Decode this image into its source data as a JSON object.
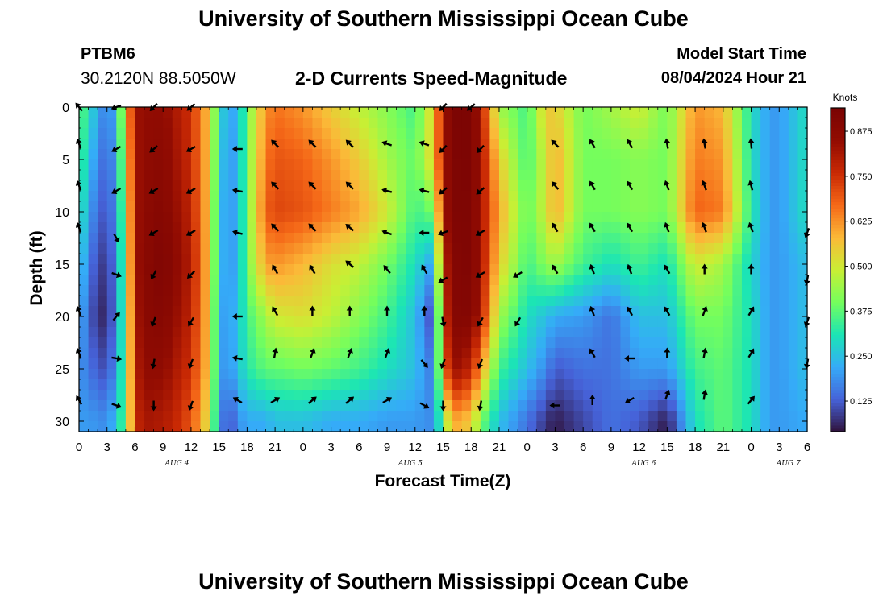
{
  "header": {
    "title": "University of Southern Mississippi Ocean Cube",
    "station": "PTBM6",
    "coords": "30.2120N  88.5050W",
    "subtitle": "2-D Currents Speed-Magnitude",
    "model_start_label": "Model Start Time",
    "model_start_value": "08/04/2024 Hour 21"
  },
  "footer": {
    "title": "University of Southern Mississippi Ocean Cube"
  },
  "chart_data": {
    "type": "heatmap",
    "title": "2-D Currents Speed-Magnitude",
    "xlabel": "Forecast Time(Z)",
    "ylabel": "Depth (ft)",
    "x_range_hours": [
      0,
      78
    ],
    "x_hour_offset": 0,
    "x_tick_step_hours": 3,
    "ylim": [
      0,
      31
    ],
    "y_ticks": [
      0,
      5,
      10,
      15,
      20,
      25,
      30
    ],
    "date_labels": [
      {
        "label": "AUG 4",
        "hour": 10.5
      },
      {
        "label": "AUG 5",
        "hour": 35.5
      },
      {
        "label": "AUG 6",
        "hour": 60.5
      },
      {
        "label": "AUG 7",
        "hour": 76
      }
    ],
    "colorbar": {
      "title": "Knots",
      "min": 0.04,
      "max": 0.94,
      "ticks": [
        0.125,
        0.25,
        0.375,
        0.5,
        0.625,
        0.75,
        0.875
      ],
      "tick_labels": [
        "0.125",
        "0.250",
        "0.375",
        "0.500",
        "0.625",
        "0.750",
        "0.875"
      ]
    },
    "grid_hours": [
      0,
      1,
      3,
      4,
      5,
      6,
      7,
      9,
      10,
      12,
      14,
      15,
      16,
      17,
      18,
      20,
      21,
      24,
      27,
      30,
      33,
      36,
      38,
      39,
      40,
      42,
      43,
      45,
      48,
      50,
      51,
      54,
      57,
      60,
      63,
      66,
      69,
      72,
      74,
      75,
      78
    ],
    "grid_depths_ft": [
      0,
      5,
      10,
      15,
      20,
      25,
      30
    ],
    "speed_knots": [
      [
        0.4,
        0.3,
        0.15,
        0.25,
        0.55,
        0.83,
        0.85,
        0.86,
        0.82,
        0.75,
        0.55,
        0.3,
        0.22,
        0.22,
        0.4,
        0.62,
        0.66,
        0.62,
        0.55,
        0.48,
        0.42,
        0.35,
        0.55,
        0.82,
        0.93,
        0.93,
        0.8,
        0.45,
        0.35,
        0.55,
        0.55,
        0.4,
        0.45,
        0.5,
        0.4,
        0.62,
        0.58,
        0.3,
        0.2,
        0.2,
        0.3
      ],
      [
        0.38,
        0.25,
        0.12,
        0.22,
        0.5,
        0.82,
        0.86,
        0.88,
        0.84,
        0.76,
        0.55,
        0.28,
        0.2,
        0.22,
        0.4,
        0.65,
        0.7,
        0.68,
        0.62,
        0.55,
        0.45,
        0.38,
        0.55,
        0.82,
        0.92,
        0.93,
        0.82,
        0.55,
        0.35,
        0.5,
        0.6,
        0.4,
        0.4,
        0.42,
        0.4,
        0.65,
        0.62,
        0.3,
        0.2,
        0.2,
        0.3
      ],
      [
        0.35,
        0.2,
        0.1,
        0.2,
        0.45,
        0.82,
        0.87,
        0.9,
        0.86,
        0.78,
        0.55,
        0.25,
        0.2,
        0.22,
        0.4,
        0.68,
        0.72,
        0.7,
        0.65,
        0.6,
        0.5,
        0.35,
        0.4,
        0.8,
        0.92,
        0.92,
        0.82,
        0.6,
        0.38,
        0.5,
        0.6,
        0.4,
        0.4,
        0.42,
        0.4,
        0.68,
        0.65,
        0.32,
        0.2,
        0.2,
        0.3
      ],
      [
        0.3,
        0.15,
        0.07,
        0.18,
        0.42,
        0.82,
        0.88,
        0.92,
        0.88,
        0.8,
        0.55,
        0.25,
        0.2,
        0.22,
        0.4,
        0.6,
        0.62,
        0.58,
        0.52,
        0.48,
        0.4,
        0.3,
        0.2,
        0.75,
        0.9,
        0.92,
        0.82,
        0.55,
        0.35,
        0.42,
        0.45,
        0.35,
        0.3,
        0.35,
        0.3,
        0.5,
        0.45,
        0.28,
        0.2,
        0.2,
        0.25
      ],
      [
        0.25,
        0.12,
        0.05,
        0.18,
        0.4,
        0.8,
        0.88,
        0.9,
        0.86,
        0.78,
        0.55,
        0.22,
        0.2,
        0.25,
        0.35,
        0.45,
        0.5,
        0.52,
        0.48,
        0.42,
        0.35,
        0.25,
        0.08,
        0.7,
        0.9,
        0.9,
        0.8,
        0.45,
        0.3,
        0.25,
        0.22,
        0.2,
        0.15,
        0.25,
        0.25,
        0.4,
        0.4,
        0.3,
        0.2,
        0.2,
        0.25
      ],
      [
        0.2,
        0.15,
        0.1,
        0.2,
        0.4,
        0.78,
        0.86,
        0.86,
        0.82,
        0.75,
        0.55,
        0.22,
        0.18,
        0.25,
        0.32,
        0.38,
        0.38,
        0.4,
        0.38,
        0.35,
        0.3,
        0.25,
        0.15,
        0.62,
        0.85,
        0.78,
        0.62,
        0.35,
        0.25,
        0.18,
        0.12,
        0.15,
        0.15,
        0.2,
        0.2,
        0.35,
        0.38,
        0.3,
        0.2,
        0.2,
        0.25
      ],
      [
        0.2,
        0.2,
        0.18,
        0.25,
        0.4,
        0.75,
        0.82,
        0.8,
        0.78,
        0.7,
        0.5,
        0.2,
        0.1,
        0.18,
        0.22,
        0.22,
        0.25,
        0.25,
        0.22,
        0.22,
        0.2,
        0.2,
        0.18,
        0.4,
        0.6,
        0.55,
        0.4,
        0.25,
        0.15,
        0.08,
        0.05,
        0.1,
        0.15,
        0.12,
        0.05,
        0.3,
        0.38,
        0.3,
        0.2,
        0.2,
        0.22
      ]
    ],
    "arrows": [
      {
        "hour": 0,
        "depth": 0,
        "dir": 320
      },
      {
        "hour": 4,
        "depth": 0,
        "dir": 250
      },
      {
        "hour": 8,
        "depth": 0,
        "dir": 225
      },
      {
        "hour": 12,
        "depth": 0,
        "dir": 230
      },
      {
        "hour": 39,
        "depth": 0,
        "dir": 225
      },
      {
        "hour": 42,
        "depth": 0,
        "dir": 230
      },
      {
        "hour": 0,
        "depth": 3.5,
        "dir": 340
      },
      {
        "hour": 4,
        "depth": 4,
        "dir": 240
      },
      {
        "hour": 8,
        "depth": 4,
        "dir": 230
      },
      {
        "hour": 12,
        "depth": 4,
        "dir": 240
      },
      {
        "hour": 17,
        "depth": 4,
        "dir": 270
      },
      {
        "hour": 21,
        "depth": 3.5,
        "dir": 315
      },
      {
        "hour": 25,
        "depth": 3.5,
        "dir": 315
      },
      {
        "hour": 29,
        "depth": 3.5,
        "dir": 315
      },
      {
        "hour": 33,
        "depth": 3.5,
        "dir": 290
      },
      {
        "hour": 37,
        "depth": 3.5,
        "dir": 290
      },
      {
        "hour": 39,
        "depth": 4,
        "dir": 225
      },
      {
        "hour": 43,
        "depth": 4,
        "dir": 225
      },
      {
        "hour": 51,
        "depth": 3.5,
        "dir": 315
      },
      {
        "hour": 55,
        "depth": 3.5,
        "dir": 330
      },
      {
        "hour": 59,
        "depth": 3.5,
        "dir": 330
      },
      {
        "hour": 63,
        "depth": 3.5,
        "dir": 350
      },
      {
        "hour": 67,
        "depth": 3.5,
        "dir": 350
      },
      {
        "hour": 72,
        "depth": 3.5,
        "dir": 355
      },
      {
        "hour": 0,
        "depth": 7.5,
        "dir": 340
      },
      {
        "hour": 4,
        "depth": 8,
        "dir": 240
      },
      {
        "hour": 8,
        "depth": 8,
        "dir": 240
      },
      {
        "hour": 12,
        "depth": 8,
        "dir": 240
      },
      {
        "hour": 17,
        "depth": 8,
        "dir": 280
      },
      {
        "hour": 21,
        "depth": 7.5,
        "dir": 315
      },
      {
        "hour": 25,
        "depth": 7.5,
        "dir": 315
      },
      {
        "hour": 29,
        "depth": 7.5,
        "dir": 315
      },
      {
        "hour": 33,
        "depth": 8,
        "dir": 285
      },
      {
        "hour": 37,
        "depth": 8,
        "dir": 285
      },
      {
        "hour": 39,
        "depth": 8,
        "dir": 230
      },
      {
        "hour": 43,
        "depth": 8,
        "dir": 230
      },
      {
        "hour": 51,
        "depth": 7.5,
        "dir": 320
      },
      {
        "hour": 55,
        "depth": 7.5,
        "dir": 330
      },
      {
        "hour": 59,
        "depth": 7.5,
        "dir": 330
      },
      {
        "hour": 63,
        "depth": 7.5,
        "dir": 340
      },
      {
        "hour": 67,
        "depth": 7.5,
        "dir": 340
      },
      {
        "hour": 72,
        "depth": 7.5,
        "dir": 345
      },
      {
        "hour": 0,
        "depth": 11.5,
        "dir": 340
      },
      {
        "hour": 4,
        "depth": 12.5,
        "dir": 150
      },
      {
        "hour": 8,
        "depth": 12,
        "dir": 240
      },
      {
        "hour": 12,
        "depth": 12,
        "dir": 240
      },
      {
        "hour": 17,
        "depth": 12,
        "dir": 285
      },
      {
        "hour": 21,
        "depth": 11.5,
        "dir": 315
      },
      {
        "hour": 25,
        "depth": 11.5,
        "dir": 315
      },
      {
        "hour": 29,
        "depth": 11.5,
        "dir": 310
      },
      {
        "hour": 33,
        "depth": 12,
        "dir": 290
      },
      {
        "hour": 37,
        "depth": 12,
        "dir": 270
      },
      {
        "hour": 39,
        "depth": 12,
        "dir": 250
      },
      {
        "hour": 43,
        "depth": 12,
        "dir": 240
      },
      {
        "hour": 51,
        "depth": 11.5,
        "dir": 330
      },
      {
        "hour": 55,
        "depth": 11.5,
        "dir": 330
      },
      {
        "hour": 59,
        "depth": 11.5,
        "dir": 330
      },
      {
        "hour": 63,
        "depth": 11.5,
        "dir": 340
      },
      {
        "hour": 67,
        "depth": 11.5,
        "dir": 340
      },
      {
        "hour": 72,
        "depth": 11.5,
        "dir": 340
      },
      {
        "hour": 78,
        "depth": 12,
        "dir": 200
      },
      {
        "hour": 4,
        "depth": 16,
        "dir": 110
      },
      {
        "hour": 8,
        "depth": 16,
        "dir": 210
      },
      {
        "hour": 12,
        "depth": 16,
        "dir": 225
      },
      {
        "hour": 21,
        "depth": 15.5,
        "dir": 330
      },
      {
        "hour": 25,
        "depth": 15.5,
        "dir": 330
      },
      {
        "hour": 29,
        "depth": 15,
        "dir": 310
      },
      {
        "hour": 33,
        "depth": 15.5,
        "dir": 320
      },
      {
        "hour": 37,
        "depth": 15.5,
        "dir": 330
      },
      {
        "hour": 39,
        "depth": 16.5,
        "dir": 240
      },
      {
        "hour": 43,
        "depth": 16,
        "dir": 240
      },
      {
        "hour": 47,
        "depth": 16,
        "dir": 240
      },
      {
        "hour": 51,
        "depth": 15.5,
        "dir": 330
      },
      {
        "hour": 55,
        "depth": 15.5,
        "dir": 340
      },
      {
        "hour": 59,
        "depth": 15.5,
        "dir": 340
      },
      {
        "hour": 63,
        "depth": 15.5,
        "dir": 330
      },
      {
        "hour": 67,
        "depth": 15.5,
        "dir": 0
      },
      {
        "hour": 72,
        "depth": 15.5,
        "dir": 0
      },
      {
        "hour": 78,
        "depth": 16.5,
        "dir": 190
      },
      {
        "hour": 0,
        "depth": 19.5,
        "dir": 340
      },
      {
        "hour": 4,
        "depth": 20,
        "dir": 40
      },
      {
        "hour": 8,
        "depth": 20.5,
        "dir": 200
      },
      {
        "hour": 12,
        "depth": 20.5,
        "dir": 210
      },
      {
        "hour": 17,
        "depth": 20,
        "dir": 270
      },
      {
        "hour": 21,
        "depth": 19.5,
        "dir": 330
      },
      {
        "hour": 25,
        "depth": 19.5,
        "dir": 0
      },
      {
        "hour": 29,
        "depth": 19.5,
        "dir": 0
      },
      {
        "hour": 33,
        "depth": 19.5,
        "dir": 0
      },
      {
        "hour": 37,
        "depth": 19.5,
        "dir": 0
      },
      {
        "hour": 39,
        "depth": 20.5,
        "dir": 170
      },
      {
        "hour": 43,
        "depth": 20.5,
        "dir": 210
      },
      {
        "hour": 47,
        "depth": 20.5,
        "dir": 210
      },
      {
        "hour": 55,
        "depth": 19.5,
        "dir": 340
      },
      {
        "hour": 59,
        "depth": 19.5,
        "dir": 330
      },
      {
        "hour": 63,
        "depth": 19.5,
        "dir": 330
      },
      {
        "hour": 67,
        "depth": 19.5,
        "dir": 20
      },
      {
        "hour": 72,
        "depth": 19.5,
        "dir": 30
      },
      {
        "hour": 78,
        "depth": 20.5,
        "dir": 200
      },
      {
        "hour": 0,
        "depth": 23.5,
        "dir": 340
      },
      {
        "hour": 4,
        "depth": 24,
        "dir": 100
      },
      {
        "hour": 8,
        "depth": 24.5,
        "dir": 190
      },
      {
        "hour": 12,
        "depth": 24.5,
        "dir": 200
      },
      {
        "hour": 17,
        "depth": 24,
        "dir": 280
      },
      {
        "hour": 21,
        "depth": 23.5,
        "dir": 10
      },
      {
        "hour": 25,
        "depth": 23.5,
        "dir": 20
      },
      {
        "hour": 29,
        "depth": 23.5,
        "dir": 20
      },
      {
        "hour": 33,
        "depth": 23.5,
        "dir": 20
      },
      {
        "hour": 37,
        "depth": 24.5,
        "dir": 140
      },
      {
        "hour": 39,
        "depth": 24.5,
        "dir": 200
      },
      {
        "hour": 43,
        "depth": 24.5,
        "dir": 200
      },
      {
        "hour": 55,
        "depth": 23.5,
        "dir": 330
      },
      {
        "hour": 59,
        "depth": 24,
        "dir": 270
      },
      {
        "hour": 63,
        "depth": 23.5,
        "dir": 0
      },
      {
        "hour": 67,
        "depth": 23.5,
        "dir": 10
      },
      {
        "hour": 72,
        "depth": 23.5,
        "dir": 30
      },
      {
        "hour": 78,
        "depth": 24.5,
        "dir": 190
      },
      {
        "hour": 0,
        "depth": 28,
        "dir": 330
      },
      {
        "hour": 4,
        "depth": 28.5,
        "dir": 110
      },
      {
        "hour": 8,
        "depth": 28.5,
        "dir": 180
      },
      {
        "hour": 12,
        "depth": 28.5,
        "dir": 200
      },
      {
        "hour": 17,
        "depth": 28,
        "dir": 300
      },
      {
        "hour": 21,
        "depth": 28,
        "dir": 60
      },
      {
        "hour": 25,
        "depth": 28,
        "dir": 50
      },
      {
        "hour": 29,
        "depth": 28,
        "dir": 50
      },
      {
        "hour": 33,
        "depth": 28,
        "dir": 60
      },
      {
        "hour": 37,
        "depth": 28.5,
        "dir": 120
      },
      {
        "hour": 39,
        "depth": 28.5,
        "dir": 180
      },
      {
        "hour": 43,
        "depth": 28.5,
        "dir": 190
      },
      {
        "hour": 51,
        "depth": 28.5,
        "dir": 270
      },
      {
        "hour": 55,
        "depth": 28,
        "dir": 0
      },
      {
        "hour": 59,
        "depth": 28,
        "dir": 240
      },
      {
        "hour": 63,
        "depth": 27.5,
        "dir": 20
      },
      {
        "hour": 67,
        "depth": 27.5,
        "dir": 10
      },
      {
        "hour": 72,
        "depth": 28,
        "dir": 40
      }
    ]
  }
}
